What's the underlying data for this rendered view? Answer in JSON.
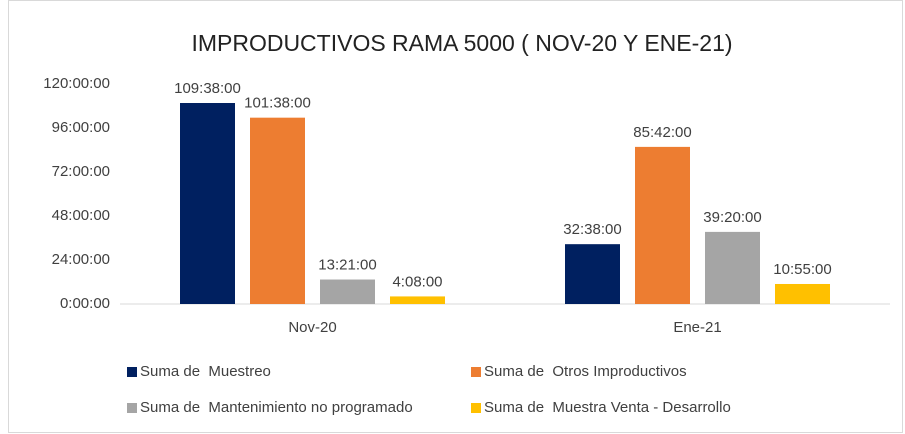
{
  "chart_data": {
    "type": "bar",
    "title": "IMPRODUCTIVOS RAMA 5000 ( NOV-20 Y ENE-21)",
    "categories": [
      "Nov-20",
      "Ene-21"
    ],
    "series": [
      {
        "name": "Suma de  Muestreo",
        "color": "#002060",
        "values": [
          109.6333,
          32.6333
        ],
        "value_labels": [
          "109:38:00",
          "32:38:00"
        ]
      },
      {
        "name": "Suma de  Otros Improductivos",
        "color": "#ED7D31",
        "values": [
          101.6333,
          85.7
        ],
        "value_labels": [
          "101:38:00",
          "85:42:00"
        ]
      },
      {
        "name": "Suma de  Mantenimiento no programado",
        "color": "#A5A5A5",
        "values": [
          13.35,
          39.3333
        ],
        "value_labels": [
          "13:21:00",
          "39:20:00"
        ]
      },
      {
        "name": "Suma de  Muestra Venta - Desarrollo",
        "color": "#FFC000",
        "values": [
          4.1333,
          10.9167
        ],
        "value_labels": [
          "4:08:00",
          "10:55:00"
        ]
      }
    ],
    "ylim": [
      0,
      120
    ],
    "yticks": [
      {
        "value": 0,
        "label": "0:00:00"
      },
      {
        "value": 24,
        "label": "24:00:00"
      },
      {
        "value": 48,
        "label": "48:00:00"
      },
      {
        "value": 72,
        "label": "72:00:00"
      },
      {
        "value": 96,
        "label": "96:00:00"
      },
      {
        "value": 120,
        "label": "120:00:00"
      }
    ],
    "legend": "bottom"
  }
}
